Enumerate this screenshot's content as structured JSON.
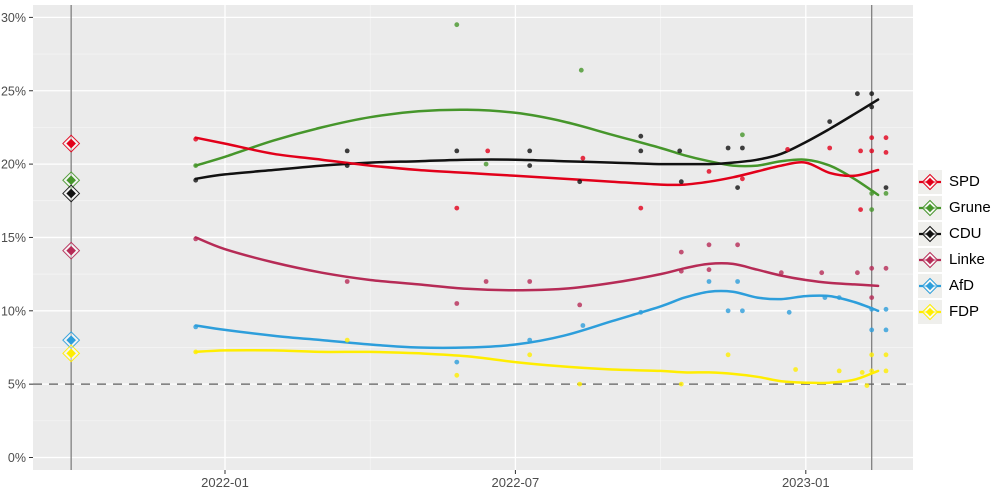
{
  "app": {
    "description": "Berlin polling aggregation chart with smoothed party trends, poll scatter points, 5% threshold and election markers"
  },
  "colors": {
    "panel_bg": "#ebebeb",
    "gridline_major": "#ffffff",
    "gridline_minor": "#f5f5f5",
    "axis_text": "#4d4d4d",
    "tick_mark": "#333333",
    "threshold_line": "#5f5f5f",
    "election_line": "#808080",
    "legend_key_bg": "#efefec"
  },
  "chart_data": {
    "type": "scatter",
    "title": "",
    "x_axis": {
      "tick_labels": [
        "2022-01",
        "2022-07",
        "2023-01"
      ],
      "tick_dates": [
        "2022-01-01",
        "2022-07-01",
        "2023-01-01"
      ],
      "minor_dates": [
        "2022-04-01",
        "2022-10-01"
      ],
      "start": "2021-08-28",
      "end": "2023-03-05"
    },
    "y_axis": {
      "tick_labels": [
        "0%",
        "5%",
        "10%",
        "15%",
        "20%",
        "25%",
        "30%"
      ],
      "tick_values": [
        0,
        5,
        10,
        15,
        20,
        25,
        30
      ],
      "minor_values": [
        2.5,
        7.5,
        12.5,
        17.5,
        22.5,
        27.5
      ],
      "range": [
        0,
        30
      ]
    },
    "threshold_line": {
      "value": 5,
      "style": "dashed"
    },
    "election_lines": [
      {
        "date": "2021-09-26"
      },
      {
        "date": "2023-02-12"
      }
    ],
    "trend_dates": [
      "2021-12-13",
      "2022-01-01",
      "2022-02-01",
      "2022-03-01",
      "2022-04-01",
      "2022-05-01",
      "2022-06-01",
      "2022-07-01",
      "2022-08-01",
      "2022-09-01",
      "2022-10-01",
      "2022-10-16",
      "2022-11-01",
      "2022-11-16",
      "2022-12-01",
      "2022-12-16",
      "2023-01-01",
      "2023-01-16",
      "2023-02-01",
      "2023-02-16"
    ],
    "series": [
      {
        "name": "SPD",
        "color": "#e2001a",
        "election_result": 21.4,
        "trend_values": [
          21.8,
          21.4,
          20.7,
          20.3,
          19.9,
          19.6,
          19.4,
          19.2,
          19.0,
          18.8,
          18.6,
          18.6,
          18.8,
          19.1,
          19.5,
          19.9,
          20.1,
          19.4,
          19.2,
          19.6
        ],
        "polls": [
          [
            "2021-12-13",
            21.7
          ],
          [
            "2022-05-25",
            17.0
          ],
          [
            "2022-06-14",
            20.9
          ],
          [
            "2022-08-13",
            20.4
          ],
          [
            "2022-09-19",
            17.0
          ],
          [
            "2022-11-01",
            19.5
          ],
          [
            "2022-11-22",
            19.0
          ],
          [
            "2022-12-20",
            21.0
          ],
          [
            "2023-01-16",
            21.1
          ],
          [
            "2023-02-05",
            20.9
          ],
          [
            "2023-02-05",
            16.9
          ],
          [
            "2023-02-12",
            21.8
          ],
          [
            "2023-02-12",
            20.9
          ],
          [
            "2023-02-21",
            21.8
          ],
          [
            "2023-02-21",
            20.8
          ]
        ]
      },
      {
        "name": "Grune",
        "color": "#46962b",
        "election_result": 18.9,
        "trend_values": [
          19.9,
          20.5,
          21.6,
          22.5,
          23.2,
          23.6,
          23.7,
          23.5,
          22.9,
          22.0,
          21.1,
          20.6,
          20.2,
          19.9,
          19.9,
          20.2,
          20.3,
          19.9,
          19.0,
          17.9
        ],
        "polls": [
          [
            "2021-12-13",
            19.9
          ],
          [
            "2022-05-25",
            29.5
          ],
          [
            "2022-06-13",
            20.0
          ],
          [
            "2022-08-12",
            26.4
          ],
          [
            "2022-11-22",
            22.0
          ],
          [
            "2023-02-12",
            18.0
          ],
          [
            "2023-02-12",
            16.9
          ],
          [
            "2023-02-21",
            18.0
          ]
        ]
      },
      {
        "name": "CDU",
        "color": "#111111",
        "election_result": 18.0,
        "trend_values": [
          19.0,
          19.3,
          19.6,
          19.9,
          20.1,
          20.2,
          20.3,
          20.3,
          20.2,
          20.1,
          20.0,
          20.0,
          20.0,
          20.1,
          20.3,
          20.7,
          21.5,
          22.4,
          23.4,
          24.4
        ],
        "polls": [
          [
            "2021-12-13",
            18.9
          ],
          [
            "2022-03-17",
            20.9
          ],
          [
            "2022-03-17",
            19.9
          ],
          [
            "2022-05-25",
            20.9
          ],
          [
            "2022-07-10",
            20.9
          ],
          [
            "2022-07-10",
            19.9
          ],
          [
            "2022-08-11",
            18.8
          ],
          [
            "2022-09-19",
            21.9
          ],
          [
            "2022-09-19",
            20.9
          ],
          [
            "2022-10-13",
            20.9
          ],
          [
            "2022-10-14",
            18.8
          ],
          [
            "2022-11-13",
            21.1
          ],
          [
            "2022-11-19",
            18.4
          ],
          [
            "2022-11-22",
            21.1
          ],
          [
            "2023-01-16",
            22.9
          ],
          [
            "2023-02-03",
            24.8
          ],
          [
            "2023-02-12",
            24.8
          ],
          [
            "2023-02-12",
            23.9
          ],
          [
            "2023-02-21",
            18.4
          ]
        ]
      },
      {
        "name": "Linke",
        "color": "#b62b56",
        "election_result": 14.1,
        "trend_values": [
          15.0,
          14.2,
          13.3,
          12.6,
          12.1,
          11.8,
          11.5,
          11.4,
          11.5,
          11.9,
          12.5,
          12.9,
          13.2,
          13.2,
          12.8,
          12.4,
          12.1,
          11.9,
          11.8,
          11.7
        ],
        "polls": [
          [
            "2021-12-13",
            14.9
          ],
          [
            "2022-03-17",
            12.0
          ],
          [
            "2022-05-25",
            10.5
          ],
          [
            "2022-06-13",
            12.0
          ],
          [
            "2022-07-10",
            12.0
          ],
          [
            "2022-08-11",
            10.4
          ],
          [
            "2022-10-14",
            14.0
          ],
          [
            "2022-10-14",
            12.7
          ],
          [
            "2022-11-01",
            14.5
          ],
          [
            "2022-11-01",
            12.8
          ],
          [
            "2022-11-19",
            14.5
          ],
          [
            "2022-12-16",
            12.6
          ],
          [
            "2023-01-11",
            12.6
          ],
          [
            "2023-02-03",
            12.6
          ],
          [
            "2023-02-12",
            12.9
          ],
          [
            "2023-02-12",
            10.9
          ],
          [
            "2023-02-21",
            12.9
          ]
        ]
      },
      {
        "name": "AfD",
        "color": "#2d9edb",
        "election_result": 8.0,
        "trend_values": [
          9.0,
          8.7,
          8.3,
          8.0,
          7.7,
          7.5,
          7.5,
          7.7,
          8.3,
          9.3,
          10.3,
          10.9,
          11.3,
          11.3,
          10.9,
          10.8,
          11.0,
          11.0,
          10.6,
          10.0
        ],
        "polls": [
          [
            "2021-12-13",
            8.9
          ],
          [
            "2022-05-25",
            6.5
          ],
          [
            "2022-07-10",
            8.0
          ],
          [
            "2022-08-13",
            9.0
          ],
          [
            "2022-09-19",
            9.9
          ],
          [
            "2022-11-01",
            12.0
          ],
          [
            "2022-11-13",
            10.0
          ],
          [
            "2022-11-19",
            12.0
          ],
          [
            "2022-11-22",
            10.0
          ],
          [
            "2022-12-21",
            9.9
          ],
          [
            "2023-01-13",
            10.9
          ],
          [
            "2023-01-22",
            10.9
          ],
          [
            "2023-02-12",
            10.1
          ],
          [
            "2023-02-12",
            8.7
          ],
          [
            "2023-02-21",
            10.1
          ],
          [
            "2023-02-21",
            8.7
          ]
        ]
      },
      {
        "name": "FDP",
        "color": "#ffed00",
        "election_result": 7.1,
        "trend_values": [
          7.2,
          7.3,
          7.3,
          7.2,
          7.2,
          7.1,
          6.9,
          6.5,
          6.2,
          6.0,
          5.9,
          5.8,
          5.8,
          5.7,
          5.5,
          5.2,
          5.1,
          5.1,
          5.3,
          5.9
        ],
        "polls": [
          [
            "2021-12-13",
            7.2
          ],
          [
            "2022-03-17",
            8.0
          ],
          [
            "2022-05-25",
            5.6
          ],
          [
            "2022-07-10",
            7.0
          ],
          [
            "2022-08-11",
            5.0
          ],
          [
            "2022-10-14",
            5.0
          ],
          [
            "2022-11-13",
            7.0
          ],
          [
            "2022-12-25",
            6.0
          ],
          [
            "2023-01-22",
            5.9
          ],
          [
            "2023-02-06",
            5.8
          ],
          [
            "2023-02-09",
            4.9
          ],
          [
            "2023-02-12",
            7.0
          ],
          [
            "2023-02-12",
            5.9
          ],
          [
            "2023-02-21",
            7.0
          ],
          [
            "2023-02-21",
            5.9
          ]
        ]
      }
    ],
    "legend_position": "right"
  }
}
